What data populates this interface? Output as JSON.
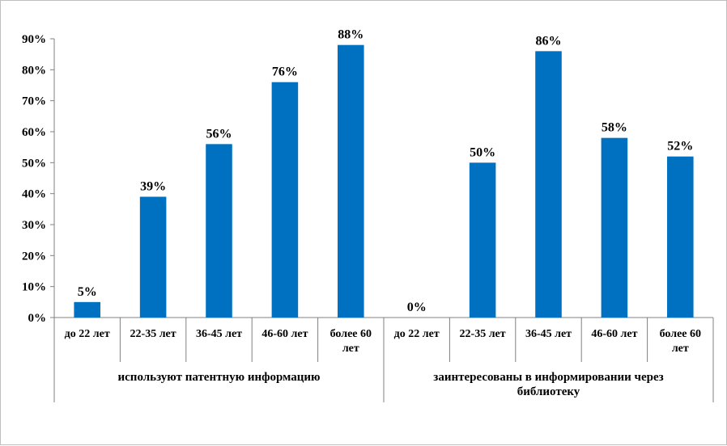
{
  "chart_data": {
    "type": "bar",
    "title": "",
    "xlabel": "",
    "ylabel": "",
    "ylim": [
      0,
      0.9
    ],
    "y_ticks": [
      "0%",
      "10%",
      "20%",
      "30%",
      "40%",
      "50%",
      "60%",
      "70%",
      "80%",
      "90%"
    ],
    "grid": false,
    "bar_color": "#0070C0",
    "groups": [
      {
        "name": "используют патентную информацию",
        "categories": [
          "до 22 лет",
          "22-35 лет",
          "36-45 лет",
          "46-60 лет",
          "более 60 лет"
        ],
        "values": [
          0.05,
          0.39,
          0.56,
          0.76,
          0.88
        ],
        "labels": [
          "5%",
          "39%",
          "56%",
          "76%",
          "88%"
        ]
      },
      {
        "name": "заинтересованы в информировании через библиотеку",
        "categories": [
          "до 22 лет",
          "22-35 лет",
          "36-45 лет",
          "46-60 лет",
          "более 60 лет"
        ],
        "values": [
          0.0,
          0.5,
          0.86,
          0.58,
          0.52
        ],
        "labels": [
          "0%",
          "50%",
          "86%",
          "58%",
          "52%"
        ]
      }
    ]
  }
}
